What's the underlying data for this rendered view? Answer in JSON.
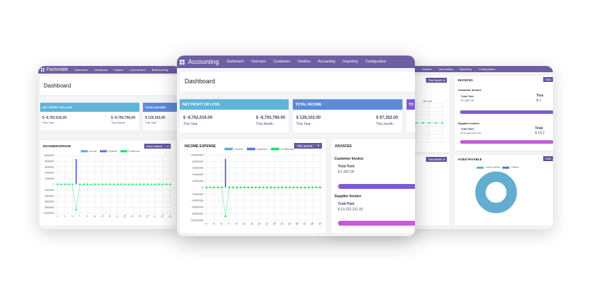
{
  "left_app": {
    "title": "Facturatie",
    "nav": [
      "Dashboard",
      "Dashboard",
      "Klanten",
      "Leveranciers",
      "Boekhouding"
    ],
    "page_title": "Dashboard",
    "kpis": [
      {
        "label": "NET PROFIT OR LOSS",
        "year_value": "$ -8.762.016,00",
        "year_label": "This Year",
        "month_value": "$ -8.793.766,00",
        "month_label": "This Month",
        "color": "#5fb4da"
      },
      {
        "label": "TOTAL INCOME",
        "year_value": "$ 129.102,00",
        "year_label": "This Year",
        "color": "#5b8bd8"
      }
    ],
    "chart_title": "INCOME/EXPENSE",
    "period": "Deze maand"
  },
  "center_app": {
    "title": "Accounting",
    "nav": [
      "Dashboard",
      "Overview",
      "Customers",
      "Vendors",
      "Accounting",
      "Reporting",
      "Configuration"
    ],
    "page_title": "Dashboard",
    "kpis": [
      {
        "label": "NET PROFIT OR LOSS",
        "year_value": "$ -8,762,016.00",
        "year_label": "This Year",
        "month_value": "$ -8,793,766.00",
        "month_label": "This Month",
        "color": "#5fb4da"
      },
      {
        "label": "TOTAL INCOME",
        "year_value": "$ 129,102.00",
        "year_label": "This Year",
        "month_value": "$ 97,352.00",
        "month_label": "This month",
        "color": "#5b8bd8"
      },
      {
        "label": "TO",
        "color": "#7c5cd6"
      }
    ],
    "chart_title": "INCOME EXPENSE",
    "period": "This Month",
    "invoices": {
      "title": "INVOICES",
      "customer": {
        "heading": "Customer Invoice",
        "label": "Total Paid",
        "value": "$ 1,687.00"
      },
      "supplier": {
        "heading": "Supplier Invoice",
        "label": "Total Paid",
        "value": "$ 10,222,221.00"
      }
    }
  },
  "right_app": {
    "nav": [
      "Vendors",
      "Accounting",
      "Reporting",
      "Configuration"
    ],
    "period": "This Month",
    "invoices": {
      "title": "INVOICES",
      "period": "This",
      "customer": {
        "heading": "Customer Invoice",
        "label": "Total Paid",
        "value": "$ 1,687.00",
        "label2": "Tota",
        "value2": "$ 1"
      },
      "supplier": {
        "heading": "Supplier Invoice",
        "label": "Total Paid",
        "value": "$ 10,222,221.00",
        "label2": "Total",
        "value2": "$ 10,2"
      }
    },
    "aged": {
      "title": "AGED PAYABLE",
      "period": "This",
      "legend": [
        "Azure Interior",
        "Others"
      ]
    },
    "partial_legend": "fit/Loss"
  },
  "colors": {
    "nav": "#6e5ea2",
    "income": "#5aaed6",
    "expense": "#5577d4",
    "profit": "#19e36b",
    "customer_bar": "#7d5ad6",
    "supplier_bar": "#c55bd8",
    "donut": "#62aed0"
  },
  "chart_data": {
    "type": "bar+line",
    "legend": [
      "Income",
      "Expense",
      "Profit/Loss"
    ],
    "x": [
      1,
      2,
      3,
      4,
      5,
      6,
      7,
      8,
      9,
      10,
      11,
      12,
      13,
      14,
      15,
      16,
      17,
      18,
      19,
      20,
      21,
      22,
      23,
      24,
      25,
      26,
      27,
      28,
      29,
      30,
      31
    ],
    "x_ticks": [
      "1",
      "3",
      "5",
      "7",
      "9",
      "11",
      "13",
      "15",
      "17",
      "19",
      "21",
      "23",
      "25",
      "27",
      "29",
      "31"
    ],
    "y_ticks": [
      "10000000",
      "8000000",
      "6000000",
      "4000000",
      "2000000",
      "0",
      "-2000000",
      "-4000000",
      "-6000000",
      "-8000000",
      "-10000000"
    ],
    "ylim": [
      -10000000,
      10000000
    ],
    "grid": true,
    "legend_position": "top",
    "series": [
      {
        "name": "Income",
        "type": "bar",
        "values": [
          0,
          0,
          0,
          0,
          0,
          0,
          0,
          0,
          0,
          0,
          0,
          0,
          0,
          0,
          0,
          0,
          0,
          0,
          0,
          0,
          0,
          0,
          0,
          0,
          0,
          0,
          0,
          0,
          0,
          0,
          0
        ]
      },
      {
        "name": "Expense",
        "type": "bar",
        "values": [
          0,
          0,
          0,
          0,
          0,
          8800000,
          0,
          0,
          0,
          0,
          0,
          0,
          0,
          0,
          0,
          0,
          0,
          0,
          0,
          0,
          0,
          0,
          0,
          0,
          0,
          0,
          0,
          0,
          0,
          0,
          0
        ]
      },
      {
        "name": "Profit/Loss",
        "type": "line",
        "values": [
          0,
          0,
          0,
          0,
          0,
          -8800000,
          0,
          0,
          0,
          0,
          0,
          0,
          0,
          0,
          0,
          0,
          0,
          0,
          0,
          0,
          0,
          0,
          0,
          0,
          0,
          0,
          0,
          0,
          0,
          0,
          0
        ]
      }
    ]
  }
}
